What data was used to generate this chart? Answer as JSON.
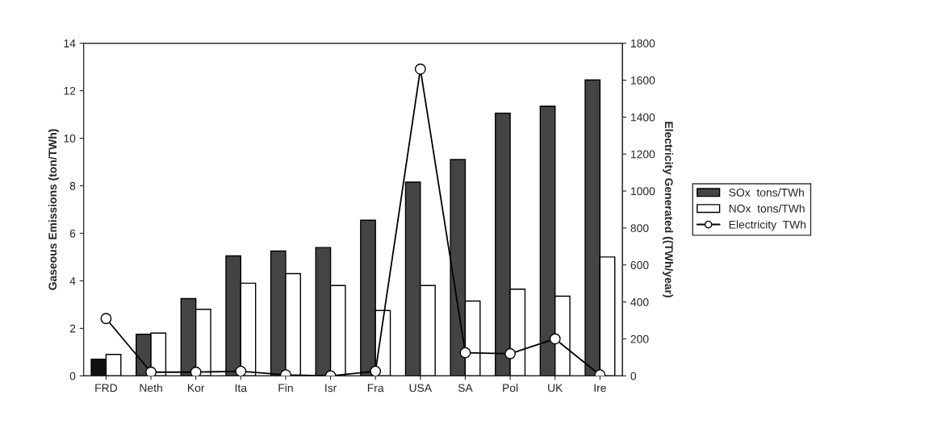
{
  "chart_data": {
    "type": "bar",
    "ylabel": "Gaseous Emissions (ton/TWh)",
    "y2label": "Electricity Generated ((TWh/year)",
    "categories": [
      "FRD",
      "Neth",
      "Kor",
      "Ita",
      "Fin",
      "Isr",
      "Fra",
      "USA",
      "SA",
      "Pol",
      "UK",
      "Ire"
    ],
    "series": [
      {
        "name": "SOx  tons/TWh",
        "color": "#444444",
        "colors": [
          "#111111",
          "#444444",
          "#444444",
          "#444444",
          "#444444",
          "#444444",
          "#444444",
          "#444444",
          "#444444",
          "#444444",
          "#444444",
          "#444444"
        ],
        "values": [
          0.7,
          1.75,
          3.25,
          5.05,
          5.25,
          5.4,
          6.55,
          8.15,
          9.1,
          11.05,
          11.35,
          12.45
        ]
      },
      {
        "name": "NOx  tons/TWh",
        "color": "#ffffff",
        "values": [
          0.9,
          1.8,
          2.8,
          3.9,
          4.3,
          3.8,
          2.75,
          3.8,
          3.15,
          3.65,
          3.35,
          5.0
        ]
      },
      {
        "name": "Electricity  TWh",
        "type": "line",
        "axis": "y2",
        "color": "#000000",
        "marker": "circle",
        "values": [
          310,
          20,
          20,
          25,
          5,
          0,
          25,
          1660,
          125,
          120,
          200,
          5
        ]
      }
    ],
    "ylim": [
      0,
      14
    ],
    "yticks": [
      0,
      2,
      4,
      6,
      8,
      10,
      12,
      14
    ],
    "y2lim": [
      0,
      1800
    ],
    "y2ticks": [
      0,
      200,
      400,
      600,
      800,
      1000,
      1200,
      1400,
      1600,
      1800
    ],
    "grid": false,
    "legend": "right"
  }
}
